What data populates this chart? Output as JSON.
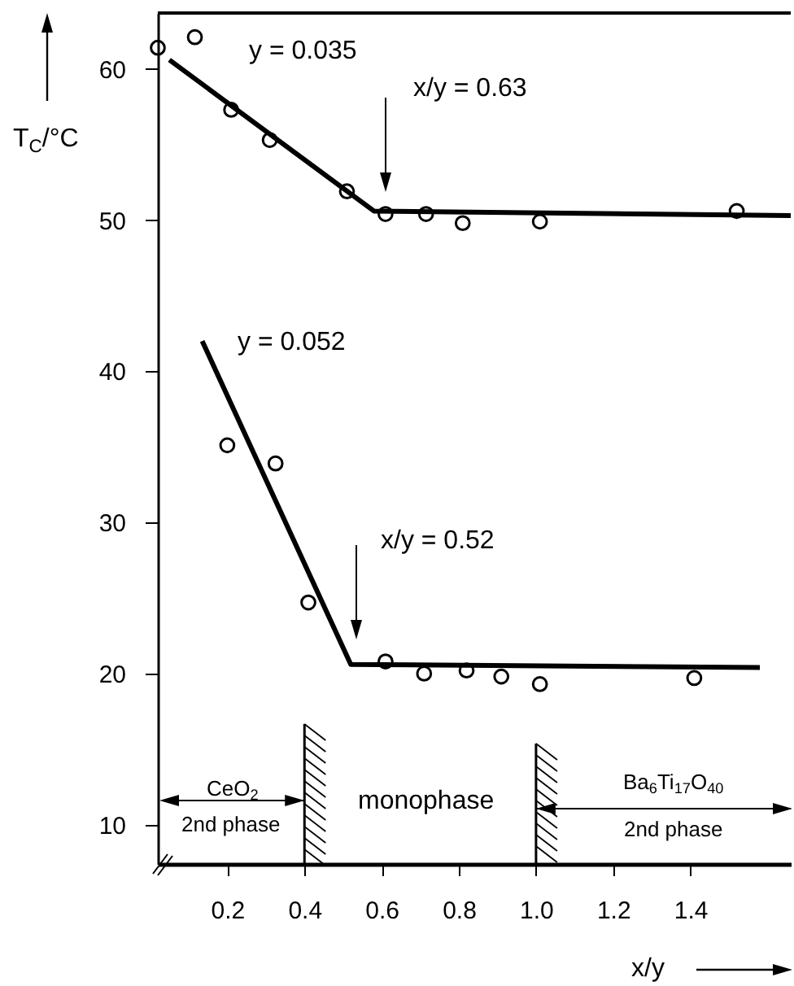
{
  "chart_data": {
    "type": "scatter",
    "xlabel": "x/y",
    "ylabel": "T$_{C}$/°C",
    "xlim": [
      0.02,
      1.66
    ],
    "ylim": [
      7.4,
      63.7
    ],
    "xticks": [
      0.2,
      0.4,
      0.6,
      0.8,
      {
        "value": 1,
        "label": "1.0"
      },
      1.2,
      1.4
    ],
    "yticks": [
      10,
      20,
      30,
      40,
      50,
      60
    ],
    "grid": false,
    "series": [
      {
        "marker": "circle",
        "color": "#000000",
        "x": [
          0.02,
          0.116,
          0.21,
          0.31,
          0.51,
          0.61,
          0.715,
          0.81,
          1.01,
          1.52
        ],
        "values": [
          61.4,
          62.1,
          57.3,
          55.3,
          51.9,
          50.4,
          50.4,
          49.8,
          49.9,
          50.6
        ]
      },
      {
        "name": "y = 0.035",
        "type": "line",
        "marker": "none",
        "color": "#000000",
        "x": [
          0.05,
          0.58,
          1.66
        ],
        "values": [
          60.6,
          50.6,
          50.3
        ]
      },
      {
        "marker": "circle",
        "color": "#000000",
        "x": [
          0.2,
          0.325,
          0.41,
          0.61,
          0.71,
          0.82,
          0.91,
          1.01,
          1.41
        ],
        "values": [
          35.1,
          33.9,
          24.7,
          20.8,
          20.0,
          20.2,
          19.8,
          19.3,
          19.7
        ]
      },
      {
        "name": "y = 0.052",
        "type": "line",
        "marker": "none",
        "color": "#000000",
        "x": [
          0.135,
          0.52,
          1.58
        ],
        "values": [
          42.0,
          20.6,
          20.4
        ]
      }
    ],
    "ref_lines": [
      {
        "axis": "x",
        "value": 0.4,
        "color": "#000000"
      },
      {
        "axis": "x",
        "value": 1.0,
        "color": "#000000"
      }
    ],
    "annotations": [
      "x/y = 0.63",
      "x/y = 0.52",
      "CeO$_{2}$",
      "2nd phase",
      "monophase",
      "Ba$_{6}$Ti$_{17}$O$_{40}$",
      "2nd phase"
    ]
  }
}
